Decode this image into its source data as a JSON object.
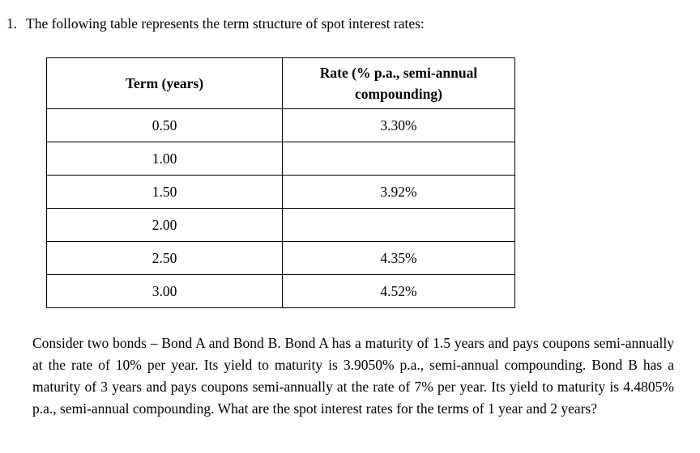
{
  "question": {
    "number": "1.",
    "intro": "The following table represents the term structure of spot interest rates:"
  },
  "table": {
    "headers": [
      "Term (years)",
      "Rate (% p.a., semi-annual compounding)"
    ],
    "rows": [
      {
        "term": "0.50",
        "rate": "3.30%"
      },
      {
        "term": "1.00",
        "rate": ""
      },
      {
        "term": "1.50",
        "rate": "3.92%"
      },
      {
        "term": "2.00",
        "rate": ""
      },
      {
        "term": "2.50",
        "rate": "4.35%"
      },
      {
        "term": "3.00",
        "rate": "4.52%"
      }
    ]
  },
  "paragraph": "Consider two bonds – Bond A and Bond B.  Bond A has a maturity of 1.5 years and pays coupons semi-annually at the rate of 10% per year.  Its yield to maturity is 3.9050% p.a., semi-annual compounding.  Bond B has a maturity of 3 years and pays coupons semi-annually at the rate of 7% per year.  Its yield to maturity is 4.4805% p.a., semi-annual compounding.  What are the spot interest rates for the terms of 1 year and 2 years?"
}
